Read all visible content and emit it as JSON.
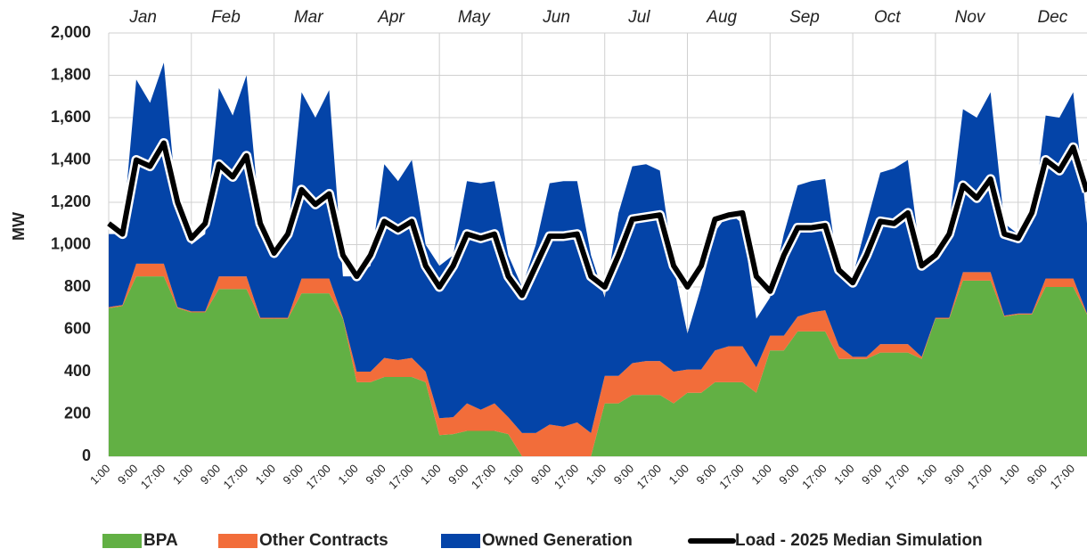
{
  "chart_data": {
    "type": "area",
    "y_label": "MW",
    "months": [
      "Jan",
      "Feb",
      "Mar",
      "Apr",
      "May",
      "Jun",
      "Jul",
      "Aug",
      "Sep",
      "Oct",
      "Nov",
      "Dec"
    ],
    "categories": [
      "1:00",
      null,
      "9:00",
      null,
      "17:00",
      null,
      "1:00",
      null,
      "9:00",
      null,
      "17:00",
      null,
      "1:00",
      null,
      "9:00",
      null,
      "17:00",
      null,
      "1:00",
      null,
      "9:00",
      null,
      "17:00",
      null,
      "1:00",
      null,
      "9:00",
      null,
      "17:00",
      null,
      "1:00",
      null,
      "9:00",
      null,
      "17:00",
      null,
      "1:00",
      null,
      "9:00",
      null,
      "17:00",
      null,
      "1:00",
      null,
      "9:00",
      null,
      "17:00",
      null,
      "1:00",
      null,
      "9:00",
      null,
      "17:00",
      null,
      "1:00",
      null,
      "9:00",
      null,
      "17:00",
      null,
      "1:00",
      null,
      "9:00",
      null,
      "17:00",
      null,
      "1:00",
      null,
      "9:00",
      null,
      "17:00",
      null
    ],
    "ylim": [
      0,
      2000
    ],
    "yticks": [
      0,
      200,
      400,
      600,
      800,
      {
        "value": 1000,
        "label": "1,000"
      },
      {
        "value": 1200,
        "label": "1,200"
      },
      {
        "value": 1400,
        "label": "1,400"
      },
      {
        "value": 1600,
        "label": "1,600"
      },
      {
        "value": 1800,
        "label": "1,800"
      },
      {
        "value": 2000,
        "label": "2,000"
      }
    ],
    "grid": true,
    "series": [
      {
        "name": "BPA",
        "color": "#62b044",
        "type": "area",
        "values": [
          700,
          710,
          850,
          850,
          850,
          700,
          680,
          680,
          790,
          790,
          790,
          650,
          650,
          650,
          770,
          770,
          770,
          650,
          350,
          350,
          375,
          375,
          375,
          350,
          100,
          105,
          120,
          120,
          120,
          105,
          0,
          0,
          0,
          0,
          0,
          0,
          250,
          250,
          290,
          290,
          290,
          250,
          300,
          300,
          350,
          350,
          350,
          300,
          500,
          500,
          590,
          590,
          590,
          460,
          460,
          460,
          490,
          490,
          490,
          460,
          650,
          650,
          830,
          830,
          830,
          660,
          670,
          670,
          800,
          800,
          800,
          670
        ]
      },
      {
        "name": "Other Contracts",
        "color": "#f26d3a",
        "type": "area",
        "values": [
          5,
          5,
          60,
          60,
          60,
          5,
          5,
          5,
          60,
          60,
          60,
          5,
          5,
          5,
          70,
          70,
          70,
          5,
          50,
          50,
          90,
          80,
          90,
          50,
          80,
          80,
          130,
          100,
          130,
          80,
          110,
          110,
          150,
          140,
          160,
          110,
          130,
          130,
          150,
          160,
          160,
          150,
          110,
          110,
          150,
          170,
          170,
          120,
          70,
          70,
          70,
          90,
          100,
          60,
          10,
          10,
          40,
          40,
          40,
          10,
          5,
          5,
          40,
          40,
          40,
          5,
          5,
          5,
          40,
          40,
          40,
          5
        ]
      },
      {
        "name": "Owned Generation",
        "color": "#0444a8",
        "type": "area",
        "values": [
          345,
          335,
          870,
          760,
          950,
          445,
          315,
          365,
          890,
          760,
          950,
          445,
          345,
          395,
          880,
          760,
          890,
          195,
          450,
          500,
          915,
          845,
          935,
          600,
          720,
          765,
          1050,
          1070,
          1050,
          765,
          690,
          890,
          1140,
          1160,
          1140,
          840,
          370,
          770,
          930,
          930,
          900,
          500,
          170,
          390,
          560,
          630,
          580,
          230,
          180,
          480,
          620,
          620,
          620,
          330,
          380,
          630,
          810,
          830,
          870,
          430,
          295,
          445,
          770,
          730,
          850,
          435,
          375,
          425,
          770,
          760,
          880,
          425
        ]
      },
      {
        "name": "Load - 2025 Median Simulation",
        "color": "#000000",
        "type": "line",
        "values": [
          1100,
          1050,
          1400,
          1370,
          1480,
          1200,
          1030,
          1100,
          1380,
          1320,
          1420,
          1100,
          960,
          1050,
          1260,
          1190,
          1240,
          950,
          850,
          950,
          1110,
          1070,
          1110,
          900,
          800,
          900,
          1050,
          1030,
          1050,
          850,
          760,
          900,
          1040,
          1040,
          1050,
          850,
          800,
          950,
          1120,
          1130,
          1140,
          900,
          800,
          900,
          1120,
          1140,
          1150,
          850,
          780,
          950,
          1080,
          1080,
          1090,
          880,
          820,
          950,
          1110,
          1100,
          1150,
          900,
          950,
          1050,
          1280,
          1220,
          1310,
          1050,
          1030,
          1150,
          1400,
          1350,
          1460,
          1250
        ]
      }
    ]
  }
}
